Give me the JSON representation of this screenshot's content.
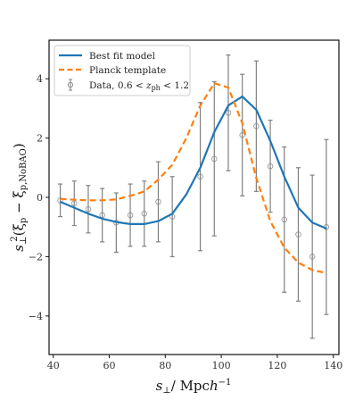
{
  "chart_data": {
    "type": "line",
    "title": "",
    "xlabel": "s⊥/   Mpch⁻¹",
    "ylabel": "s⊥²(ξp − ξp,NoBAO)",
    "xlim": [
      38.5,
      142
    ],
    "ylim": [
      -5.3,
      5.3
    ],
    "x_ticks": [
      40,
      60,
      80,
      100,
      120,
      140
    ],
    "y_ticks": [
      -4,
      -2,
      0,
      2,
      4
    ],
    "legend_position": "top-left",
    "grid": false,
    "series": [
      {
        "name": "Best fit model",
        "style": "solid",
        "color": "#1f77b4",
        "x": [
          42.5,
          47.5,
          52.5,
          57.5,
          62.5,
          67.5,
          72.5,
          77.5,
          82.5,
          87.5,
          92.5,
          97.5,
          102.5,
          107.5,
          112.5,
          117.5,
          122.5,
          127.5,
          132.5,
          137.5
        ],
        "y": [
          -0.15,
          -0.35,
          -0.55,
          -0.72,
          -0.83,
          -0.9,
          -0.9,
          -0.8,
          -0.55,
          0.1,
          1.0,
          2.2,
          3.1,
          3.4,
          2.95,
          1.9,
          0.7,
          -0.35,
          -0.85,
          -1.05
        ]
      },
      {
        "name": "Planck template",
        "style": "dashed",
        "color": "#ff7f0e",
        "x": [
          42.5,
          47.5,
          52.5,
          57.5,
          62.5,
          67.5,
          72.5,
          77.5,
          82.5,
          87.5,
          92.5,
          97.5,
          102.5,
          107.5,
          112.5,
          117.5,
          122.5,
          127.5,
          132.5,
          137.5
        ],
        "y": [
          -0.05,
          -0.08,
          -0.1,
          -0.1,
          -0.07,
          0.05,
          0.2,
          0.6,
          1.1,
          2.0,
          3.1,
          3.85,
          3.7,
          2.5,
          0.65,
          -0.8,
          -1.7,
          -2.2,
          -2.45,
          -2.55
        ]
      },
      {
        "name": "Data, 0.6 < z_ph < 1.2",
        "style": "errorbar",
        "color": "#808080",
        "x": [
          42.5,
          47.5,
          52.5,
          57.5,
          62.5,
          67.5,
          72.5,
          77.5,
          82.5,
          92.5,
          97.5,
          102.5,
          107.5,
          112.5,
          117.5,
          122.5,
          127.5,
          132.5,
          137.5
        ],
        "y": [
          -0.1,
          -0.2,
          -0.4,
          -0.6,
          -0.85,
          -0.6,
          -0.55,
          -0.15,
          -0.65,
          0.7,
          1.3,
          2.85,
          2.1,
          2.4,
          1.05,
          -0.75,
          -1.25,
          -2.0,
          -1.0
        ],
        "err": [
          0.55,
          0.75,
          0.8,
          0.9,
          1.0,
          1.05,
          1.1,
          1.35,
          1.35,
          2.5,
          2.6,
          1.95,
          2.05,
          2.2,
          1.55,
          2.45,
          2.25,
          2.75,
          2.95
        ]
      }
    ]
  },
  "legend": {
    "best_fit": "Best fit model",
    "planck": "Planck template",
    "data_prefix": "Data, 0.6 < ",
    "data_z": "z",
    "data_sub": "ph",
    "data_suffix": " < 1.2"
  },
  "labels": {
    "x_main": "s",
    "x_sub": "⊥",
    "x_unit": "/   Mpc",
    "x_h": "h",
    "x_exp": "−1",
    "y_s": "s",
    "y_sub": "⊥",
    "y_sup": "2",
    "y_open": "(ξ",
    "y_p": "p",
    "y_minus": " − ξ",
    "y_nobao": "p,NoBAO",
    "y_close": ")"
  }
}
